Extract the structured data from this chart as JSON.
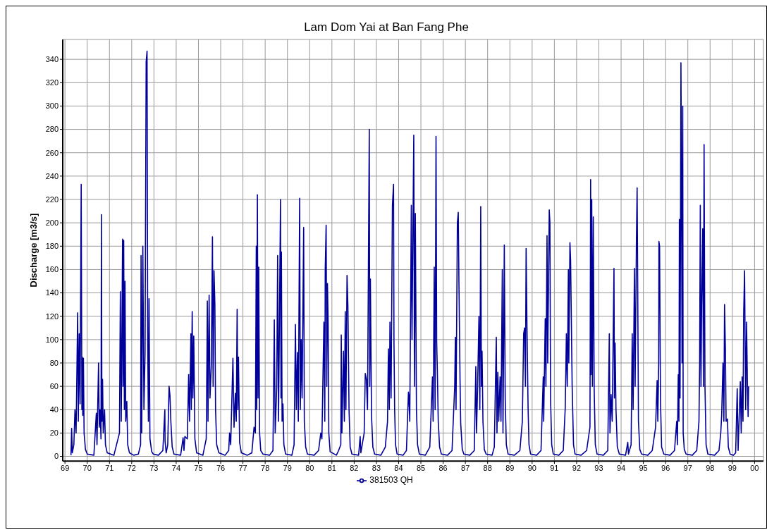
{
  "chart_data": {
    "type": "line",
    "title": "Lam Dom Yai at Ban Fang Phe",
    "ylabel": "Discharge [m3/s]",
    "xlim": [
      1968.9,
      2000.4
    ],
    "ylim": [
      -4,
      357
    ],
    "xticks": [
      {
        "value": 1969,
        "label": "69"
      },
      {
        "value": 1970,
        "label": "70"
      },
      {
        "value": 1971,
        "label": "71"
      },
      {
        "value": 1972,
        "label": "72"
      },
      {
        "value": 1973,
        "label": "73"
      },
      {
        "value": 1974,
        "label": "74"
      },
      {
        "value": 1975,
        "label": "75"
      },
      {
        "value": 1976,
        "label": "76"
      },
      {
        "value": 1977,
        "label": "77"
      },
      {
        "value": 1978,
        "label": "78"
      },
      {
        "value": 1979,
        "label": "79"
      },
      {
        "value": 1980,
        "label": "80"
      },
      {
        "value": 1981,
        "label": "81"
      },
      {
        "value": 1982,
        "label": "82"
      },
      {
        "value": 1983,
        "label": "83"
      },
      {
        "value": 1984,
        "label": "84"
      },
      {
        "value": 1985,
        "label": "85"
      },
      {
        "value": 1986,
        "label": "86"
      },
      {
        "value": 1987,
        "label": "87"
      },
      {
        "value": 1988,
        "label": "88"
      },
      {
        "value": 1989,
        "label": "89"
      },
      {
        "value": 1990,
        "label": "90"
      },
      {
        "value": 1991,
        "label": "91"
      },
      {
        "value": 1992,
        "label": "92"
      },
      {
        "value": 1993,
        "label": "93"
      },
      {
        "value": 1994,
        "label": "94"
      },
      {
        "value": 1995,
        "label": "95"
      },
      {
        "value": 1996,
        "label": "96"
      },
      {
        "value": 1997,
        "label": "97"
      },
      {
        "value": 1998,
        "label": "98"
      },
      {
        "value": 1999,
        "label": "99"
      },
      {
        "value": 2000,
        "label": "00"
      }
    ],
    "yticks": [
      0,
      20,
      40,
      60,
      80,
      100,
      120,
      140,
      160,
      180,
      200,
      220,
      240,
      260,
      280,
      300,
      320,
      340
    ],
    "grid": true,
    "legend": "bottom",
    "x": [
      1969.27,
      1969.3,
      1969.33,
      1969.4,
      1969.45,
      1969.5,
      1969.57,
      1969.6,
      1969.64,
      1969.68,
      1969.73,
      1969.76,
      1969.78,
      1969.8,
      1969.83,
      1969.86,
      1969.92,
      1970.0,
      1970.3,
      1970.41,
      1970.44,
      1970.51,
      1970.54,
      1970.58,
      1970.62,
      1970.64,
      1970.66,
      1970.69,
      1970.72,
      1970.78,
      1970.82,
      1970.9,
      1971.2,
      1971.45,
      1971.49,
      1971.53,
      1971.59,
      1971.61,
      1971.64,
      1971.67,
      1971.7,
      1971.73,
      1971.78,
      1971.82,
      1971.9,
      1972.09,
      1972.3,
      1972.4,
      1972.42,
      1972.45,
      1972.5,
      1972.55,
      1972.6,
      1972.65,
      1972.69,
      1972.72,
      1972.75,
      1972.78,
      1972.82,
      1972.9,
      1972.97,
      1973.2,
      1973.4,
      1973.49,
      1973.5,
      1973.55,
      1973.62,
      1973.68,
      1973.72,
      1973.76,
      1973.82,
      1973.9,
      1974.2,
      1974.31,
      1974.35,
      1974.39,
      1974.5,
      1974.56,
      1974.6,
      1974.66,
      1974.68,
      1974.72,
      1974.75,
      1974.79,
      1974.84,
      1974.92,
      1975.2,
      1975.35,
      1975.38,
      1975.4,
      1975.43,
      1975.48,
      1975.52,
      1975.58,
      1975.63,
      1975.66,
      1975.7,
      1975.74,
      1975.77,
      1975.82,
      1975.92,
      1976.2,
      1976.36,
      1976.4,
      1976.45,
      1976.55,
      1976.6,
      1976.66,
      1976.7,
      1976.74,
      1976.77,
      1976.8,
      1976.85,
      1976.93,
      1977.2,
      1977.4,
      1977.5,
      1977.56,
      1977.6,
      1977.62,
      1977.65,
      1977.68,
      1977.71,
      1977.75,
      1977.8,
      1977.9,
      1978.2,
      1978.35,
      1978.41,
      1978.45,
      1978.52,
      1978.56,
      1978.6,
      1978.69,
      1978.71,
      1978.73,
      1978.76,
      1978.8,
      1978.84,
      1978.92,
      1979.2,
      1979.3,
      1979.36,
      1979.4,
      1979.45,
      1979.49,
      1979.55,
      1979.58,
      1979.62,
      1979.66,
      1979.73,
      1979.76,
      1979.82,
      1979.9,
      1980.2,
      1980.4,
      1980.5,
      1980.55,
      1980.64,
      1980.68,
      1980.7,
      1980.74,
      1980.77,
      1980.8,
      1980.83,
      1980.86,
      1980.92,
      1981.2,
      1981.3,
      1981.4,
      1981.42,
      1981.45,
      1981.52,
      1981.56,
      1981.6,
      1981.63,
      1981.68,
      1981.72,
      1981.77,
      1981.82,
      1981.9,
      1982.2,
      1982.27,
      1982.3,
      1982.45,
      1982.5,
      1982.55,
      1982.6,
      1982.68,
      1982.7,
      1982.73,
      1982.78,
      1982.84,
      1982.92,
      1983.2,
      1983.4,
      1983.5,
      1983.54,
      1983.58,
      1983.61,
      1983.66,
      1983.72,
      1983.77,
      1983.79,
      1983.82,
      1983.86,
      1983.93,
      1984.2,
      1984.35,
      1984.44,
      1984.46,
      1984.5,
      1984.57,
      1984.6,
      1984.68,
      1984.71,
      1984.75,
      1984.8,
      1984.85,
      1984.93,
      1985.2,
      1985.4,
      1985.52,
      1985.55,
      1985.6,
      1985.64,
      1985.68,
      1985.71,
      1985.74,
      1985.78,
      1985.84,
      1985.92,
      1986.2,
      1986.4,
      1986.52,
      1986.55,
      1986.58,
      1986.64,
      1986.68,
      1986.71,
      1986.76,
      1986.79,
      1986.86,
      1986.93,
      1987.2,
      1987.4,
      1987.47,
      1987.5,
      1987.55,
      1987.61,
      1987.65,
      1987.69,
      1987.72,
      1987.75,
      1987.79,
      1987.85,
      1987.93,
      1988.2,
      1988.3,
      1988.39,
      1988.42,
      1988.46,
      1988.5,
      1988.56,
      1988.6,
      1988.66,
      1988.69,
      1988.75,
      1988.79,
      1988.84,
      1988.92,
      1989.2,
      1989.45,
      1989.56,
      1989.62,
      1989.66,
      1989.7,
      1989.73,
      1989.77,
      1989.82,
      1989.86,
      1989.93,
      1990.2,
      1990.4,
      1990.5,
      1990.52,
      1990.59,
      1990.62,
      1990.67,
      1990.7,
      1990.77,
      1990.8,
      1990.83,
      1990.88,
      1990.95,
      1991.2,
      1991.4,
      1991.49,
      1991.54,
      1991.58,
      1991.63,
      1991.65,
      1991.7,
      1991.73,
      1991.8,
      1991.86,
      1991.93,
      1992.2,
      1992.45,
      1992.6,
      1992.63,
      1992.65,
      1992.68,
      1992.71,
      1992.75,
      1992.79,
      1992.84,
      1992.92,
      1993.2,
      1993.4,
      1993.47,
      1993.5,
      1993.55,
      1993.6,
      1993.68,
      1993.7,
      1993.73,
      1993.77,
      1993.83,
      1993.92,
      1994.2,
      1994.3,
      1994.33,
      1994.45,
      1994.5,
      1994.54,
      1994.6,
      1994.63,
      1994.69,
      1994.72,
      1994.74,
      1994.78,
      1994.84,
      1994.92,
      1995.2,
      1995.4,
      1995.55,
      1995.62,
      1995.65,
      1995.69,
      1995.7,
      1995.73,
      1995.77,
      1995.82,
      1995.92,
      1996.2,
      1996.4,
      1996.5,
      1996.53,
      1996.57,
      1996.6,
      1996.62,
      1996.65,
      1996.69,
      1996.71,
      1996.74,
      1996.77,
      1996.79,
      1996.84,
      1996.92,
      1997.2,
      1997.4,
      1997.5,
      1997.53,
      1997.56,
      1997.59,
      1997.62,
      1997.67,
      1997.7,
      1997.73,
      1997.77,
      1997.82,
      1997.9,
      1998.2,
      1998.4,
      1998.48,
      1998.52,
      1998.58,
      1998.62,
      1998.65,
      1998.69,
      1998.72,
      1998.78,
      1998.82,
      1998.9,
      1999.05,
      1999.15,
      1999.22,
      1999.26,
      1999.36,
      1999.4,
      1999.44,
      1999.48,
      1999.51,
      1999.55,
      1999.6,
      1999.64,
      1999.68,
      1999.71,
      1999.73
    ],
    "series": [
      {
        "name": "381503 QH",
        "color": "#000099",
        "values": [
          1,
          24,
          3,
          10,
          40,
          20,
          123,
          30,
          105,
          45,
          233,
          40,
          85,
          35,
          84,
          20,
          6,
          2,
          1,
          37,
          10,
          80,
          25,
          40,
          15,
          207,
          30,
          66,
          20,
          40,
          10,
          3,
          1,
          20,
          141,
          30,
          186,
          60,
          185,
          40,
          150,
          30,
          47,
          10,
          3,
          1,
          2,
          10,
          172,
          20,
          180,
          40,
          88,
          338,
          347,
          97,
          30,
          135,
          15,
          4,
          2,
          1,
          5,
          40,
          13,
          3,
          10,
          60,
          52,
          30,
          8,
          2,
          1,
          16,
          5,
          17,
          15,
          70,
          30,
          105,
          40,
          124,
          50,
          103,
          15,
          3,
          1,
          15,
          80,
          133,
          30,
          138,
          50,
          78,
          188,
          60,
          159,
          130,
          40,
          10,
          3,
          1,
          5,
          20,
          10,
          84,
          25,
          54,
          30,
          126,
          40,
          85,
          12,
          3,
          1,
          3,
          25,
          20,
          180,
          40,
          224,
          50,
          162,
          20,
          5,
          2,
          1,
          5,
          117,
          20,
          60,
          172,
          30,
          220,
          50,
          175,
          30,
          45,
          10,
          2,
          1,
          10,
          113,
          40,
          89,
          30,
          221,
          40,
          100,
          50,
          196,
          30,
          8,
          2,
          1,
          5,
          20,
          15,
          115,
          30,
          160,
          198,
          60,
          148,
          115,
          20,
          4,
          1,
          5,
          10,
          104,
          20,
          90,
          30,
          124,
          40,
          155,
          128,
          40,
          8,
          2,
          1,
          17,
          3,
          20,
          71,
          66,
          40,
          280,
          60,
          152,
          35,
          8,
          2,
          1,
          8,
          30,
          92,
          40,
          115,
          50,
          215,
          233,
          98,
          40,
          10,
          2,
          1,
          5,
          55,
          52,
          30,
          215,
          100,
          275,
          60,
          208,
          40,
          10,
          2,
          1,
          8,
          68,
          30,
          162,
          40,
          274,
          98,
          73,
          30,
          8,
          2,
          1,
          5,
          60,
          102,
          40,
          200,
          209,
          150,
          65,
          28,
          6,
          2,
          1,
          5,
          77,
          20,
          60,
          120,
          40,
          214,
          60,
          90,
          30,
          6,
          2,
          1,
          8,
          102,
          20,
          72,
          30,
          68,
          30,
          160,
          20,
          181,
          50,
          10,
          2,
          1,
          5,
          30,
          105,
          110,
          60,
          178,
          109,
          40,
          10,
          2,
          1,
          5,
          68,
          30,
          118,
          60,
          189,
          80,
          211,
          200,
          48,
          10,
          2,
          1,
          5,
          42,
          105,
          60,
          160,
          80,
          183,
          168,
          60,
          10,
          2,
          1,
          5,
          25,
          237,
          70,
          220,
          60,
          205,
          57,
          10,
          2,
          1,
          5,
          105,
          20,
          53,
          30,
          161,
          50,
          97,
          40,
          8,
          2,
          1,
          12,
          2,
          10,
          105,
          40,
          161,
          60,
          187,
          230,
          168,
          30,
          6,
          2,
          1,
          5,
          25,
          65,
          30,
          80,
          184,
          180,
          48,
          8,
          2,
          1,
          5,
          30,
          10,
          70,
          30,
          203,
          50,
          337,
          261,
          80,
          300,
          20,
          6,
          2,
          1,
          5,
          30,
          78,
          215,
          60,
          130,
          195,
          60,
          267,
          60,
          10,
          2,
          1,
          5,
          20,
          35,
          80,
          30,
          130,
          90,
          30,
          32,
          8,
          2,
          1,
          3,
          58,
          5,
          64,
          20,
          68,
          30,
          122,
          159,
          40,
          115,
          60,
          34,
          60
        ]
      }
    ]
  }
}
